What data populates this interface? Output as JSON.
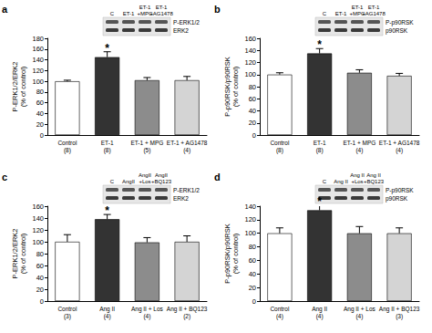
{
  "chart_data": [
    {
      "type": "bar",
      "title": "a",
      "y_label": "P-ERK1/2/ERK2\n(% of control)",
      "categories": [
        "Control\n(8)",
        "ET-1\n(8)",
        "ET-1 + MPG\n(5)",
        "ET-1 + AG1478\n(4)"
      ],
      "values": [
        100,
        145,
        102,
        102
      ],
      "errors": [
        2,
        10,
        5,
        7
      ],
      "colors": [
        "#ffffff",
        "#333333",
        "#8c8c8c",
        "#d4d4d4"
      ],
      "ylim": [
        0,
        180
      ],
      "yticks": [
        0,
        20,
        40,
        60,
        80,
        100,
        120,
        140,
        160,
        180
      ],
      "annotations": [
        {
          "text": "*",
          "at": "ET-1\n(8)"
        }
      ],
      "blot": {
        "lanes": [
          "C",
          "ET-1",
          "ET-1\n+MPG",
          "ET-1\n+AG1478"
        ],
        "bands": [
          "P-ERK1/2",
          "ERK2"
        ]
      }
    },
    {
      "type": "bar",
      "title": "b",
      "y_label": "P-p90RSK/p90RSK\n(% of control)",
      "categories": [
        "Control\n(8)",
        "ET-1\n(8)",
        "ET-1 + MPG\n(4)",
        "ET-1 + AG1478\n(4)"
      ],
      "values": [
        100,
        135,
        103,
        98
      ],
      "errors": [
        3,
        8,
        5,
        4
      ],
      "colors": [
        "#ffffff",
        "#333333",
        "#8c8c8c",
        "#d4d4d4"
      ],
      "ylim": [
        0,
        160
      ],
      "yticks": [
        0,
        20,
        40,
        60,
        80,
        100,
        120,
        140,
        160
      ],
      "annotations": [
        {
          "text": "*",
          "at": "ET-1\n(8)"
        }
      ],
      "blot": {
        "lanes": [
          "C",
          "ET-1",
          "ET-1\n+MPG",
          "ET-1\n+AG1478"
        ],
        "bands": [
          "P-p90RSK",
          "p90RSK"
        ]
      }
    },
    {
      "type": "bar",
      "title": "c",
      "y_label": "P-ERK1/2/ERK2\n(% of control)",
      "categories": [
        "Control\n(3)",
        "Ang II\n(4)",
        "Ang II + Los\n(4)",
        "Ang II + BQ123\n(2)"
      ],
      "values": [
        100,
        138,
        99,
        100
      ],
      "errors": [
        12,
        8,
        8,
        10
      ],
      "colors": [
        "#ffffff",
        "#333333",
        "#8c8c8c",
        "#d4d4d4"
      ],
      "ylim": [
        0,
        160
      ],
      "yticks": [
        0,
        20,
        40,
        60,
        80,
        100,
        120,
        140,
        160
      ],
      "annotations": [
        {
          "text": "*",
          "at": "Ang II\n(4)"
        }
      ],
      "blot": {
        "lanes": [
          "C",
          "AngII",
          "AngII\n+Los",
          "AngII\n+BQ123"
        ],
        "bands": [
          "P-ERK1/2",
          "ERK2"
        ]
      }
    },
    {
      "type": "bar",
      "title": "d",
      "y_label": "P-p90RSK/p90RSK\n(% of control)",
      "categories": [
        "Control\n(4)",
        "Ang II\n(4)",
        "Ang II + Los\n(4)",
        "Ang II + BQ123\n(3)"
      ],
      "values": [
        100,
        134,
        100,
        100
      ],
      "errors": [
        8,
        8,
        10,
        8
      ],
      "colors": [
        "#ffffff",
        "#333333",
        "#8c8c8c",
        "#d4d4d4"
      ],
      "ylim": [
        0,
        140
      ],
      "yticks": [
        0,
        20,
        40,
        60,
        80,
        100,
        120,
        140
      ],
      "annotations": [
        {
          "text": "*",
          "at": "Ang II\n(4)"
        }
      ],
      "blot": {
        "lanes": [
          "C",
          "Ang II",
          "Ang II\n+Los",
          "Ang II\n+BQ123"
        ],
        "bands": [
          "P-p90RSK",
          "p90RSK"
        ]
      }
    }
  ]
}
